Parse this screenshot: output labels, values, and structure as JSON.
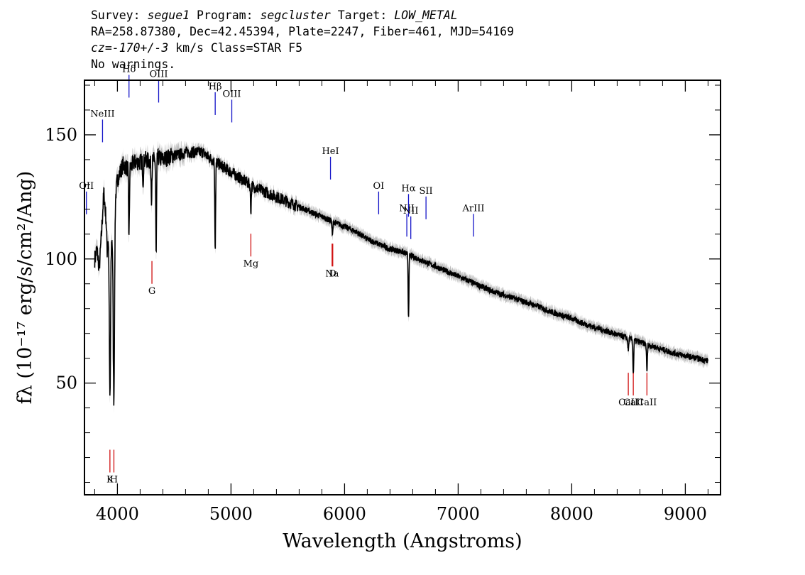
{
  "header": {
    "survey_label": "Survey:",
    "survey": "segue1",
    "program_label": "Program:",
    "program": "segcluster",
    "target_label": "Target:",
    "target": "LOW_METAL",
    "coords": "RA=258.87380, Dec=42.45394, Plate=2247, Fiber=461, MJD=54169",
    "redshift": "cz=-170+/-3",
    "redshift_unit": "km/s",
    "class_text": "Class=STAR F5",
    "warnings": "No warnings."
  },
  "chart_data": {
    "type": "line",
    "xlabel": "Wavelength (Angstroms)",
    "ylabel": "fλ (10⁻¹⁷ erg/s/cm²/Ang)",
    "xlim": [
      3710,
      9310
    ],
    "ylim": [
      5,
      172
    ],
    "xticks": [
      4000,
      5000,
      6000,
      7000,
      8000,
      9000
    ],
    "yticks": [
      50,
      100,
      150
    ],
    "x_minor_step": 200,
    "y_minor_step": 10,
    "grid": false,
    "colors": {
      "flux": "#000000",
      "error_band": "#bdbdbd",
      "emission": "#1414c8",
      "absorption": "#d01010"
    },
    "series": [
      {
        "x": [
          3800,
          3820,
          3840,
          3860,
          3880,
          3900,
          3910,
          3930,
          3950,
          3965,
          3980,
          4000,
          4050,
          4100,
          4150,
          4200,
          4250,
          4300,
          4350,
          4400,
          4450,
          4500,
          4550,
          4600,
          4650,
          4700,
          4750,
          4800,
          4900,
          5000,
          5100,
          5200,
          5300,
          5400,
          5500,
          5600,
          5700,
          5800,
          5900,
          6000,
          6100,
          6200,
          6300,
          6400,
          6500,
          6600,
          6700,
          6800,
          6900,
          7000,
          7100,
          7200,
          7300,
          7400,
          7500,
          7600,
          7700,
          7800,
          7900,
          8000,
          8100,
          8200,
          8300,
          8400,
          8500,
          8600,
          8700,
          8800,
          8900,
          9000,
          9100,
          9200
        ],
        "y": [
          100,
          104,
          96,
          110,
          127,
          116,
          103,
          118,
          108,
          110,
          124,
          132,
          138,
          136,
          139,
          139,
          140,
          139,
          141,
          140,
          141,
          142,
          142,
          143,
          143,
          143,
          143,
          141,
          138,
          135,
          132,
          129,
          127,
          125,
          123,
          121,
          119,
          117,
          115,
          113,
          111,
          108,
          106,
          104,
          103,
          101,
          99,
          97,
          95,
          93,
          91,
          89,
          87,
          85.5,
          84,
          82.5,
          81,
          79,
          77.5,
          76,
          74,
          72.5,
          71,
          69.5,
          68,
          66.5,
          65,
          63.5,
          62,
          61,
          60,
          59
        ]
      }
    ],
    "absorption_features": [
      {
        "x": 3934,
        "depth": 72
      },
      {
        "x": 3969,
        "depth": 70
      },
      {
        "x": 4102,
        "depth": 28
      },
      {
        "x": 4226,
        "depth": 8
      },
      {
        "x": 4300,
        "depth": 14
      },
      {
        "x": 4341,
        "depth": 40
      },
      {
        "x": 4861,
        "depth": 35
      },
      {
        "x": 5175,
        "depth": 10
      },
      {
        "x": 5893,
        "depth": 6
      },
      {
        "x": 6563,
        "depth": 25
      },
      {
        "x": 8498,
        "depth": 5
      },
      {
        "x": 8542,
        "depth": 14
      },
      {
        "x": 8662,
        "depth": 11
      }
    ],
    "emission_lines": [
      {
        "label": "OII",
        "x": 3727,
        "y": 118
      },
      {
        "label": "NeIII",
        "x": 3869,
        "y": 147
      },
      {
        "label": "Hδ",
        "x": 4102,
        "y": 165
      },
      {
        "label": "OIII",
        "x": 4363,
        "y": 163
      },
      {
        "label": "Hβ",
        "x": 4861,
        "y": 158
      },
      {
        "label": "OIII",
        "x": 5007,
        "y": 155
      },
      {
        "label": "HeI",
        "x": 5876,
        "y": 132
      },
      {
        "label": "OI",
        "x": 6300,
        "y": 118
      },
      {
        "label": "NII",
        "x": 6548,
        "y": 109
      },
      {
        "label": "Hα",
        "x": 6563,
        "y": 117
      },
      {
        "label": "NII",
        "x": 6583,
        "y": 108
      },
      {
        "label": "SII",
        "x": 6717,
        "y": 116
      },
      {
        "label": "ArIII",
        "x": 7135,
        "y": 109
      }
    ],
    "absorption_lines": [
      {
        "label": "K",
        "x": 3934,
        "y": 14
      },
      {
        "label": "H",
        "x": 3969,
        "y": 14
      },
      {
        "label": "G",
        "x": 4304,
        "y": 90
      },
      {
        "label": "Mg",
        "x": 5175,
        "y": 101
      },
      {
        "label": "Na",
        "x": 5890,
        "y": 97
      },
      {
        "label": "D",
        "x": 5896,
        "y": 97
      },
      {
        "label": "CaII",
        "x": 8498,
        "y": 45
      },
      {
        "label": "CaII",
        "x": 8542,
        "y": 45
      },
      {
        "label": "CaII",
        "x": 8662,
        "y": 45
      }
    ]
  }
}
